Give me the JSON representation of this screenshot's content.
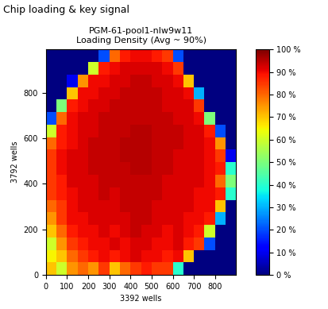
{
  "chart_data": {
    "type": "heatmap",
    "header": "Chip loading & key signal",
    "title": "PGM-61-pool1-nlw9w11\nLoading Density (Avg ~ 90%)",
    "xlabel": "3392 wells",
    "ylabel": "3792 wells",
    "xlim": [
      0,
      900
    ],
    "ylim": [
      0,
      990
    ],
    "xticks": [
      0,
      100,
      200,
      300,
      400,
      500,
      600,
      700,
      800
    ],
    "yticks": [
      0,
      200,
      400,
      600,
      800
    ],
    "cells": [
      [
        70,
        60,
        75,
        80,
        75,
        85,
        70,
        80,
        85,
        88,
        85,
        85,
        40,
        0,
        0,
        0,
        0,
        0
      ],
      [
        65,
        70,
        80,
        85,
        88,
        90,
        88,
        90,
        92,
        90,
        90,
        88,
        90,
        70,
        0,
        0,
        0,
        0
      ],
      [
        60,
        75,
        85,
        88,
        90,
        90,
        92,
        90,
        92,
        92,
        90,
        90,
        92,
        88,
        85,
        20,
        0,
        0
      ],
      [
        70,
        80,
        88,
        90,
        90,
        92,
        90,
        92,
        94,
        92,
        92,
        90,
        92,
        90,
        88,
        60,
        0,
        0
      ],
      [
        75,
        85,
        90,
        90,
        92,
        92,
        92,
        92,
        94,
        94,
        92,
        92,
        92,
        90,
        90,
        88,
        30,
        0
      ],
      [
        80,
        85,
        90,
        92,
        92,
        92,
        92,
        94,
        94,
        94,
        92,
        92,
        92,
        92,
        90,
        90,
        70,
        0
      ],
      [
        85,
        88,
        90,
        92,
        92,
        94,
        92,
        94,
        94,
        94,
        94,
        92,
        92,
        92,
        90,
        90,
        88,
        40
      ],
      [
        85,
        88,
        92,
        92,
        92,
        94,
        94,
        94,
        94,
        94,
        94,
        92,
        92,
        92,
        92,
        90,
        80,
        50
      ],
      [
        85,
        90,
        92,
        92,
        94,
        94,
        94,
        94,
        95,
        95,
        94,
        94,
        92,
        92,
        92,
        90,
        88,
        40
      ],
      [
        85,
        90,
        92,
        92,
        94,
        94,
        94,
        95,
        95,
        95,
        94,
        94,
        92,
        92,
        92,
        90,
        85,
        10
      ],
      [
        80,
        88,
        90,
        92,
        94,
        94,
        94,
        95,
        95,
        95,
        94,
        94,
        94,
        92,
        92,
        90,
        75,
        0
      ],
      [
        60,
        88,
        90,
        92,
        92,
        94,
        94,
        94,
        95,
        95,
        94,
        94,
        94,
        92,
        92,
        88,
        20,
        0
      ],
      [
        20,
        80,
        90,
        92,
        92,
        94,
        94,
        94,
        94,
        94,
        94,
        94,
        92,
        92,
        90,
        50,
        0,
        0
      ],
      [
        0,
        50,
        88,
        90,
        92,
        92,
        94,
        94,
        94,
        94,
        94,
        92,
        92,
        92,
        85,
        0,
        0,
        0
      ],
      [
        0,
        0,
        70,
        90,
        90,
        92,
        92,
        94,
        94,
        94,
        94,
        92,
        92,
        90,
        30,
        0,
        0,
        0
      ],
      [
        0,
        0,
        10,
        75,
        90,
        90,
        92,
        92,
        94,
        94,
        92,
        92,
        90,
        70,
        0,
        0,
        0,
        0
      ],
      [
        0,
        0,
        0,
        0,
        60,
        88,
        90,
        92,
        92,
        92,
        92,
        90,
        85,
        0,
        0,
        0,
        0,
        0
      ],
      [
        0,
        0,
        0,
        0,
        0,
        20,
        80,
        88,
        90,
        90,
        88,
        85,
        20,
        0,
        0,
        0,
        0,
        0
      ]
    ],
    "colorbar_range": [
      0,
      100
    ],
    "colorbar_ticks": [
      {
        "value": 0,
        "label": "0 %"
      },
      {
        "value": 10,
        "label": "10 %"
      },
      {
        "value": 20,
        "label": "20 %"
      },
      {
        "value": 30,
        "label": "30 %"
      },
      {
        "value": 40,
        "label": "40 %"
      },
      {
        "value": 50,
        "label": "50 %"
      },
      {
        "value": 60,
        "label": "60 %"
      },
      {
        "value": 70,
        "label": "70 %"
      },
      {
        "value": 80,
        "label": "80 %"
      },
      {
        "value": 90,
        "label": "90 %"
      },
      {
        "value": 100,
        "label": "100 %"
      }
    ]
  }
}
